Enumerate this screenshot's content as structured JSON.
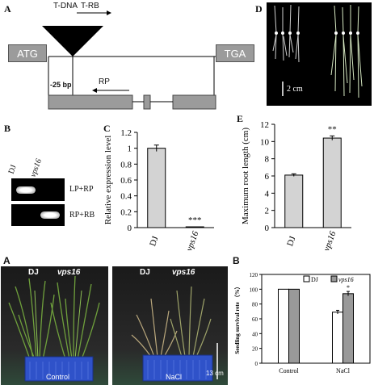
{
  "panelA_top": {
    "label": "A",
    "tdna": "T-DNA",
    "trb": "T-RB",
    "atg": "ATG",
    "tga": "TGA",
    "bp": "-25 bp",
    "rp": "RP"
  },
  "panelB": {
    "label": "B",
    "lane1": "DJ",
    "lane2": "vps16",
    "row1": "LP+RP",
    "row2": "RP+RB"
  },
  "panelD": {
    "label": "D",
    "scale": "2 cm"
  },
  "colors": {
    "bar_gray": "#d3d3d3",
    "bar_dark": "#999999",
    "gene_box": "#9b9b9b",
    "crate_blue": "#2f52c9"
  },
  "chart_data": [
    {
      "type": "bar",
      "panel": "C",
      "categories": [
        "DJ",
        "vps16"
      ],
      "values": [
        1.0,
        0.01
      ],
      "errors": [
        0.04,
        0.0
      ],
      "ylabel": "Relative expression level",
      "ylim": [
        0,
        1.2
      ],
      "yticks": [
        "0",
        "0.2",
        "0.4",
        "0.6",
        "0.8",
        "1",
        "1.2"
      ],
      "annotations": [
        "",
        "***"
      ]
    },
    {
      "type": "bar",
      "panel": "E",
      "categories": [
        "DJ",
        "vps16"
      ],
      "values": [
        6.1,
        10.4
      ],
      "errors": [
        0.15,
        0.25
      ],
      "ylabel": "Maximum root length (cm)",
      "ylim": [
        0,
        12
      ],
      "yticks": [
        "0",
        "2",
        "4",
        "6",
        "8",
        "10",
        "12"
      ],
      "annotations": [
        "",
        "**"
      ]
    },
    {
      "type": "bar",
      "panel": "B",
      "categories": [
        "Control",
        "NaCl"
      ],
      "series": [
        {
          "name": "DJ",
          "values": [
            100,
            69
          ],
          "errors": [
            0,
            2.5
          ]
        },
        {
          "name": "vps16",
          "values": [
            100,
            94
          ],
          "errors": [
            0,
            3
          ]
        }
      ],
      "ylabel": "Seedling survival rete （%）",
      "ylim": [
        0,
        120
      ],
      "yticks": [
        "0",
        "20",
        "40",
        "60",
        "80",
        "100",
        "120"
      ],
      "annotations": [
        "",
        "*"
      ]
    }
  ],
  "panelA_bottom": {
    "label": "A",
    "label_b": "B",
    "dj": "DJ",
    "vps16": "vps16",
    "control": "Control",
    "nacl": "NaCl",
    "scale": "13 cm"
  }
}
